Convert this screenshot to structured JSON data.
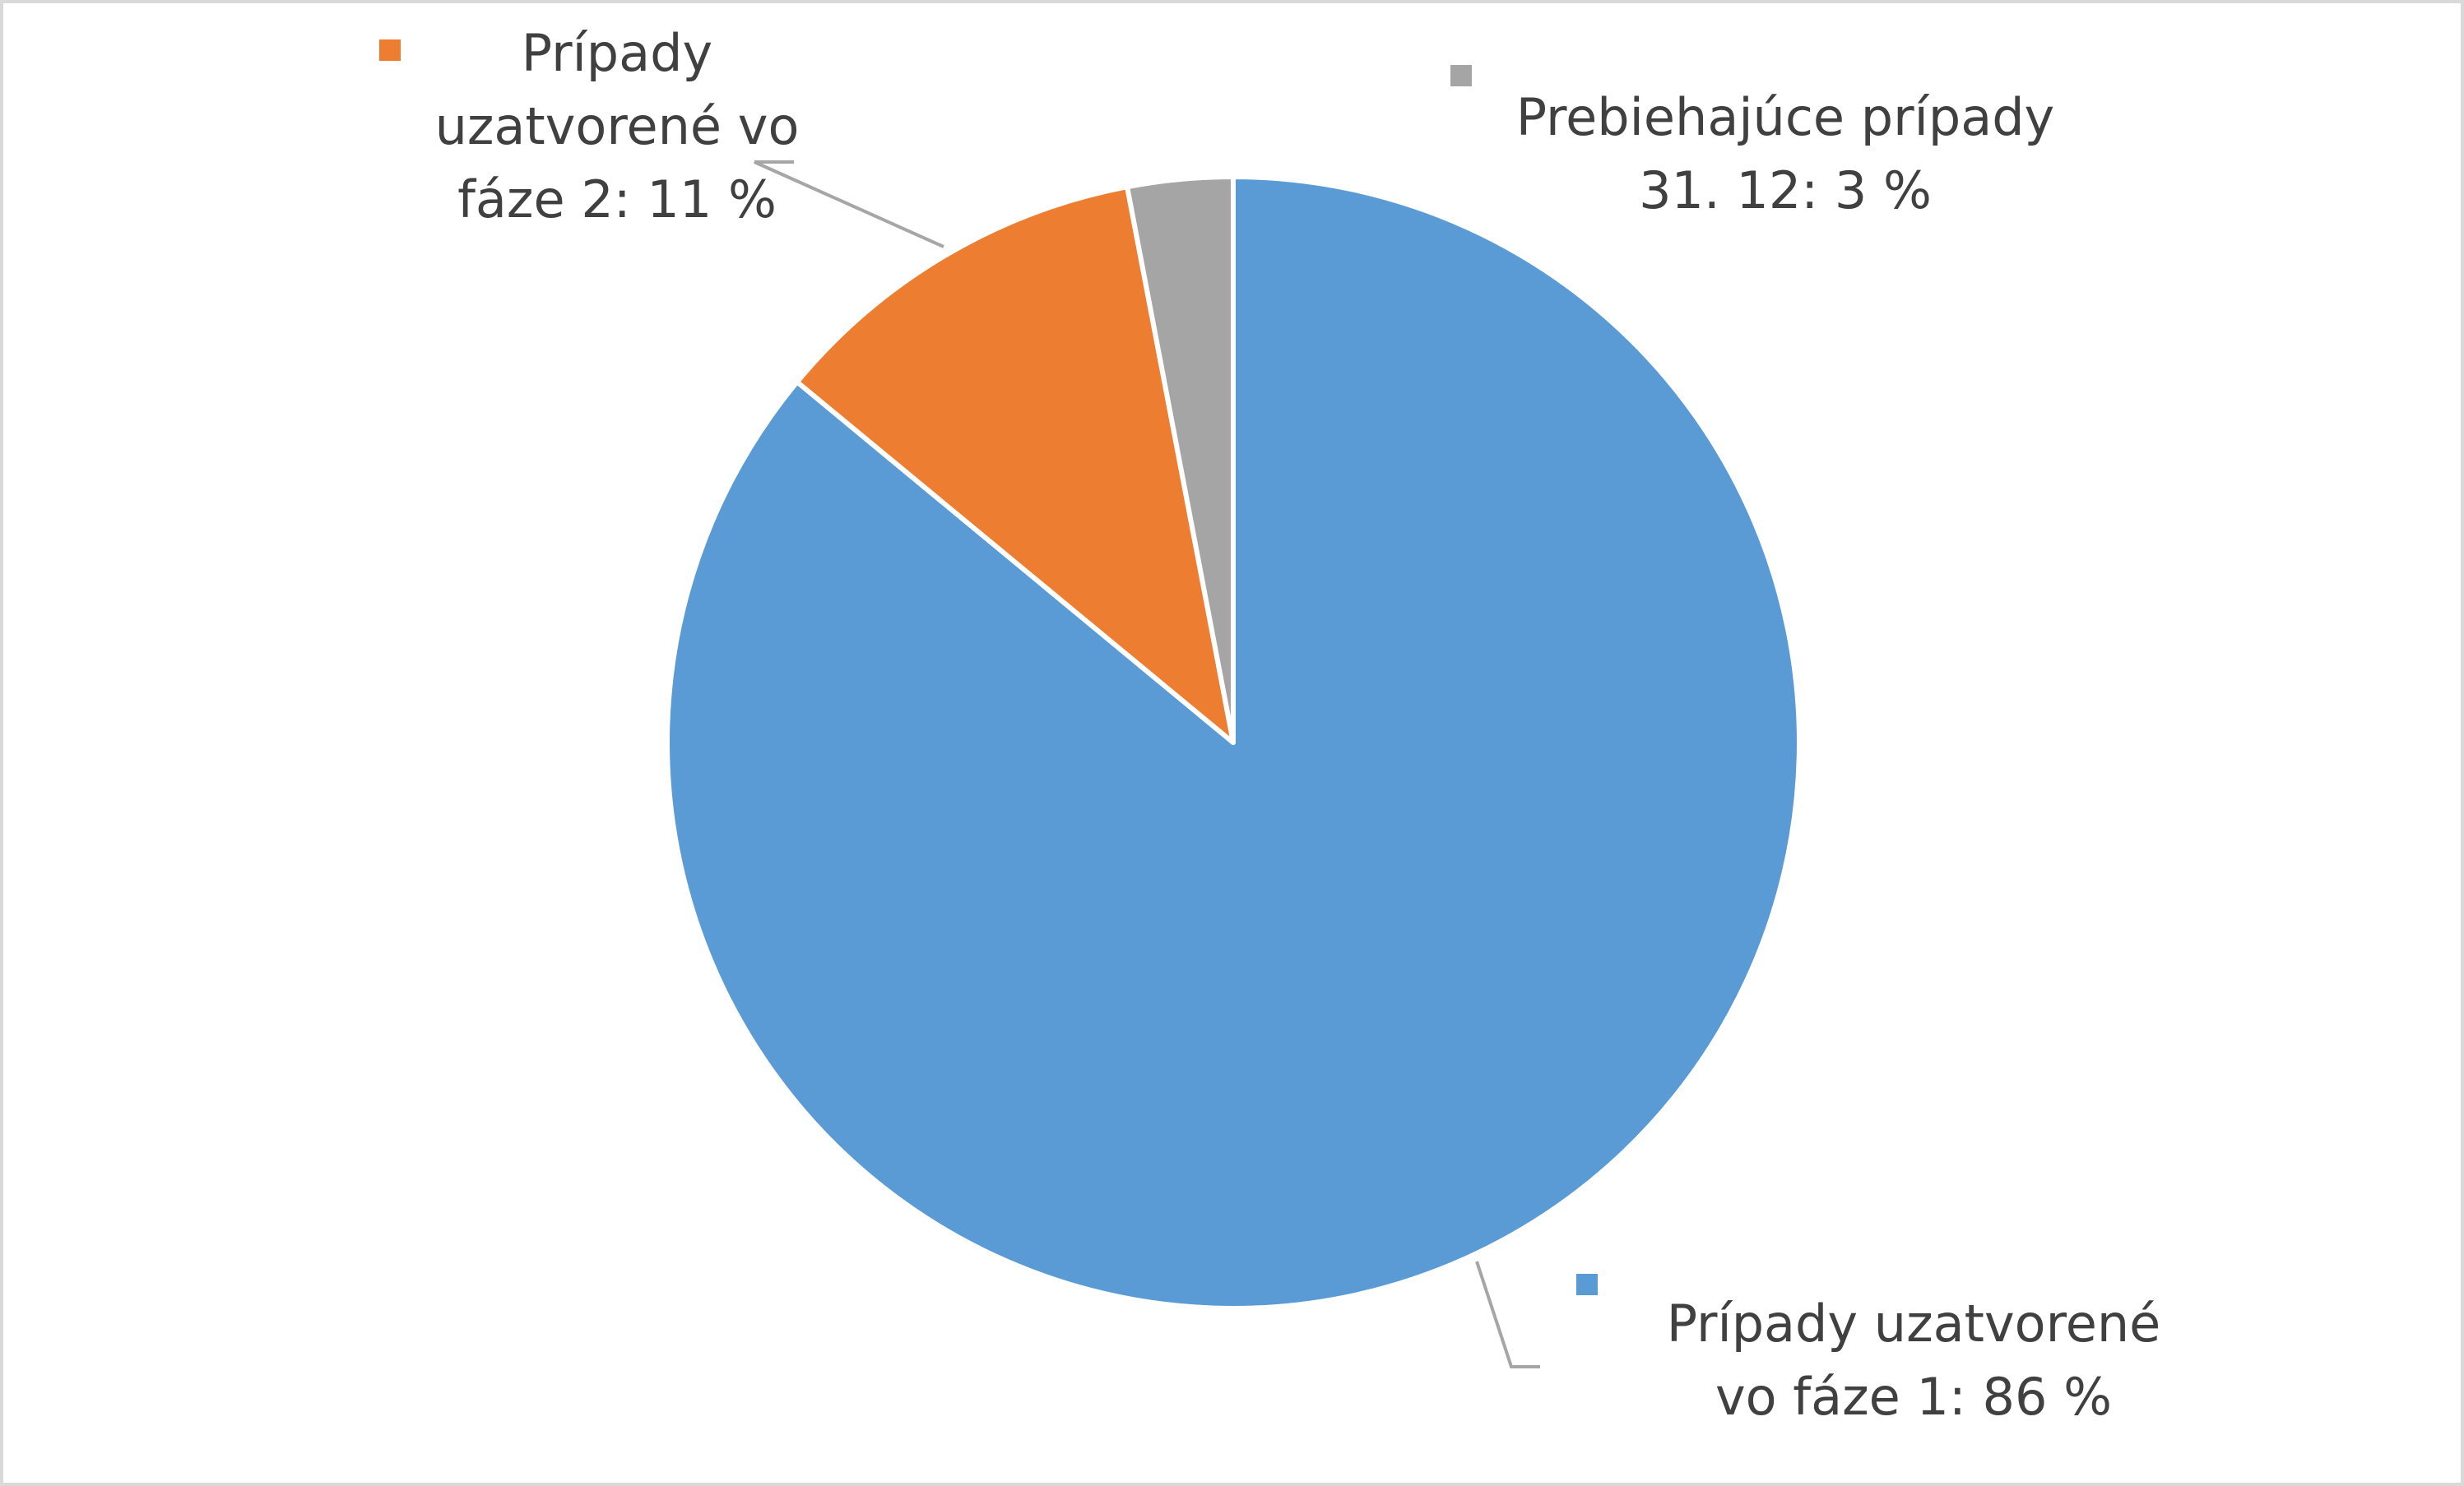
{
  "chart_data": {
    "type": "pie",
    "values": [
      86,
      11,
      3
    ],
    "value_labels": [
      "Prípady uzatvorené vo fáze 1: 86 %",
      "Prípady uzatvorené vo fáze 2: 11 %",
      "Prebiehajúce prípady 31. 12: 3 %"
    ],
    "colors": [
      "#5b9bd5",
      "#ed7d31",
      "#a5a5a5"
    ]
  }
}
